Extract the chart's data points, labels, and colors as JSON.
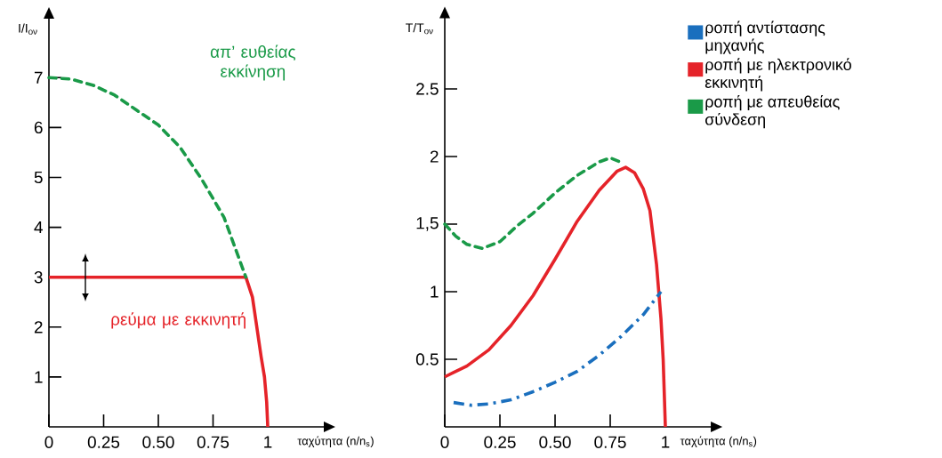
{
  "chart_data": [
    {
      "type": "line",
      "xlabel": "ταχύτητα (n/n$_{s}$)",
      "ylabel": "I/I$_{ον}$",
      "xlim": [
        0,
        1.26
      ],
      "ylim": [
        0,
        8.2
      ],
      "xticks": [
        0,
        {
          "value": 0.25,
          "label": "0.25"
        },
        {
          "value": 0.5,
          "label": "0.50"
        },
        {
          "value": 0.75,
          "label": "0.75"
        },
        1
      ],
      "yticks": [
        1,
        2,
        3,
        4,
        5,
        6,
        7
      ],
      "series": [
        {
          "name": "απ’ ευθείας εκκίνηση",
          "color": "#1a9a48",
          "line_style": "dashed",
          "x": [
            0,
            0.1,
            0.2,
            0.3,
            0.4,
            0.5,
            0.6,
            0.7,
            0.8,
            0.9
          ],
          "values": [
            7,
            6.97,
            6.85,
            6.65,
            6.35,
            6.05,
            5.6,
            4.95,
            4.2,
            3.0
          ]
        },
        {
          "name": "ρεύμα με εκκινητή",
          "color": "#e52329",
          "line_style": "solid",
          "x": [
            0,
            0.9,
            0.93,
            0.95,
            0.97,
            0.985,
            0.995,
            1
          ],
          "values": [
            3,
            3,
            2.6,
            2.0,
            1.4,
            1.0,
            0.5,
            0
          ]
        }
      ]
    },
    {
      "type": "line",
      "xlabel": "ταχύτητα (n/n$_{s}$)",
      "ylabel": "T/T$_{ον}$",
      "xlim": [
        0,
        1.21
      ],
      "ylim": [
        0,
        3.03
      ],
      "xticks": [
        0,
        {
          "value": 0.25,
          "label": "0.25"
        },
        {
          "value": 0.5,
          "label": "0.50"
        },
        {
          "value": 0.75,
          "label": "0.75"
        },
        1
      ],
      "yticks": [
        0.5,
        1,
        {
          "value": 1.5,
          "label": "1,5"
        },
        2,
        2.5
      ],
      "legend": "top right",
      "series": [
        {
          "name": "ροπή αντίστασης μηχανής",
          "color": "#1a6fbe",
          "line_style": "dashdot",
          "x": [
            0.04,
            0.12,
            0.2,
            0.3,
            0.4,
            0.5,
            0.6,
            0.7,
            0.8,
            0.9,
            0.98
          ],
          "values": [
            0.18,
            0.16,
            0.17,
            0.2,
            0.26,
            0.33,
            0.41,
            0.53,
            0.67,
            0.83,
            1.0
          ]
        },
        {
          "name": "ροπή με ηλεκτρονικό εκκινητή",
          "color": "#e52329",
          "line_style": "solid",
          "x": [
            0,
            0.1,
            0.2,
            0.3,
            0.4,
            0.5,
            0.6,
            0.7,
            0.78,
            0.82,
            0.86,
            0.9,
            0.93,
            0.96,
            0.98,
            0.99,
            1
          ],
          "values": [
            0.37,
            0.45,
            0.57,
            0.75,
            0.97,
            1.24,
            1.52,
            1.75,
            1.89,
            1.92,
            1.88,
            1.76,
            1.6,
            1.2,
            0.8,
            0.5,
            0
          ]
        },
        {
          "name": "ροπή με απευθείας σύνδεση",
          "color": "#1a9a48",
          "line_style": "dashed",
          "x": [
            0,
            0.05,
            0.1,
            0.17,
            0.25,
            0.33,
            0.4,
            0.5,
            0.6,
            0.7,
            0.75,
            0.81
          ],
          "values": [
            1.5,
            1.41,
            1.35,
            1.32,
            1.37,
            1.49,
            1.58,
            1.73,
            1.86,
            1.96,
            1.99,
            1.95
          ]
        }
      ]
    }
  ]
}
